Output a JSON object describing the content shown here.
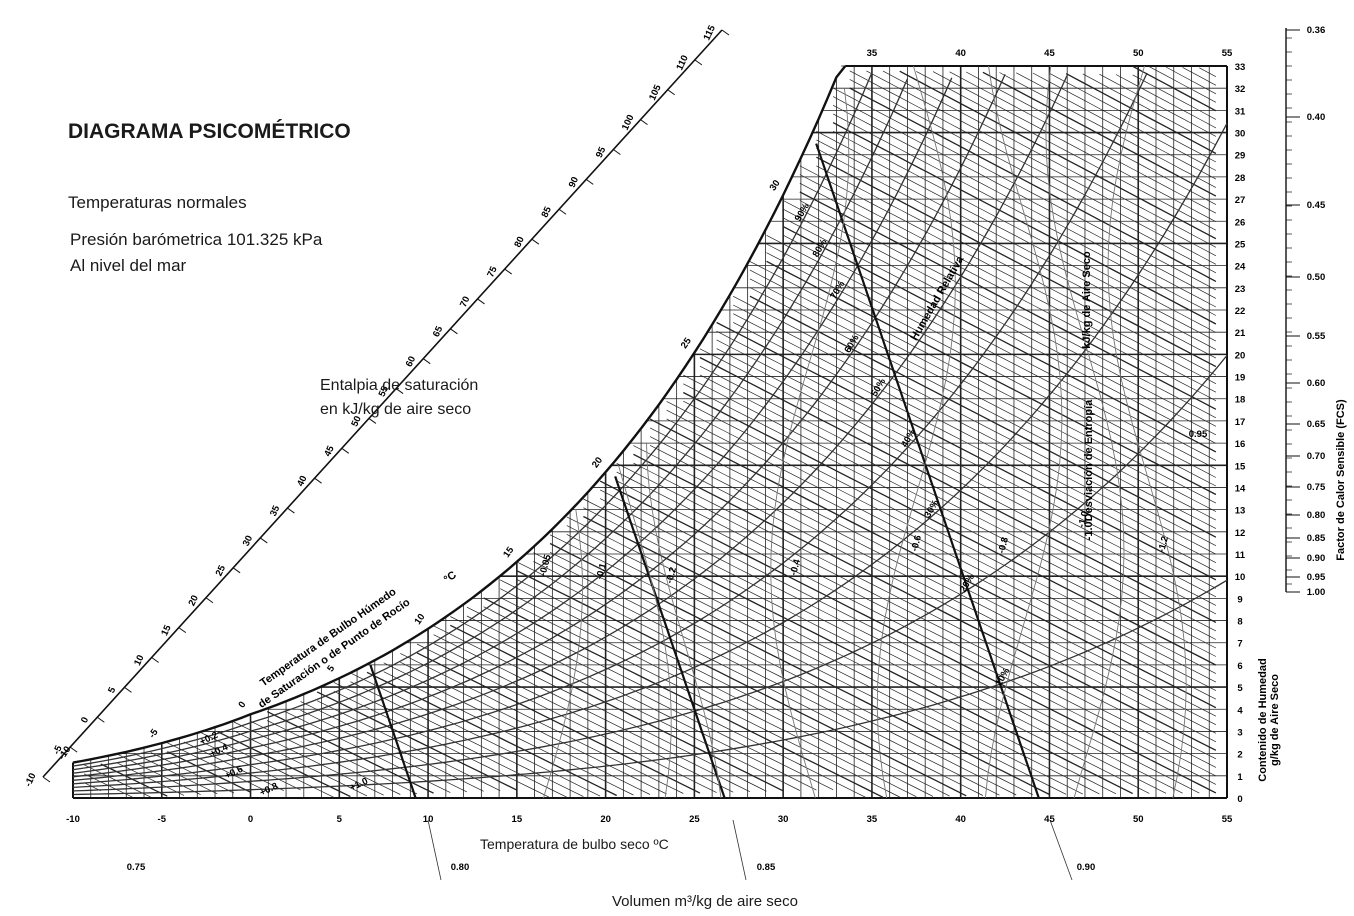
{
  "title": "DIAGRAMA PSICOMÉTRICO",
  "subtitle_1": "Temperaturas normales",
  "subtitle_2": "Presión barómetrica 101.325 kPa",
  "subtitle_3": "Al nivel del mar",
  "enthalpy_label_1": "Entalpia de saturación",
  "enthalpy_label_2": "en kJ/kg de aire seco",
  "wetbulb_label_1": "Temperatura de Bulbo Húmedo",
  "wetbulb_label_2": "de Saturación o de Punto de Rocío",
  "wetbulb_unit": "°C",
  "relative_humidity_label": "Humedad Relativa",
  "entropy_label": "kJ/kg de Aire Seco",
  "entropy_deviation_label": "-1.0Desviación de Entropía",
  "moisture_axis_label_1": "Contenido de Humedad",
  "moisture_axis_label_2": "g/kg de Aire Seco",
  "shr_axis_label": "Factor de Calor Sensible  (FCS)",
  "chart_data": {
    "type": "psychrometric",
    "xlabel": "Temperatura de bulbo seco  ºC",
    "ylabel": "Contenido de Humedad g/kg de Aire Seco",
    "volume_label": "Volumen m³/kg de aire seco",
    "dry_bulb_ticks": [
      "-10",
      "-5",
      "0",
      "5",
      "10",
      "15",
      "20",
      "25",
      "30",
      "35",
      "40",
      "45",
      "50",
      "55"
    ],
    "top_dry_bulb_ticks": [
      "35",
      "40",
      "45",
      "50",
      "55"
    ],
    "xlim": [
      -10,
      55
    ],
    "moisture_ticks": [
      "0",
      "1",
      "2",
      "3",
      "4",
      "5",
      "6",
      "7",
      "8",
      "9",
      "10",
      "11",
      "12",
      "13",
      "14",
      "15",
      "16",
      "17",
      "18",
      "19",
      "20",
      "21",
      "22",
      "23",
      "24",
      "25",
      "26",
      "27",
      "28",
      "29",
      "30",
      "31",
      "32",
      "33"
    ],
    "ylim": [
      0,
      33
    ],
    "enthalpy_ticks": [
      "-10",
      "-5",
      "0",
      "5",
      "10",
      "15",
      "20",
      "25",
      "30",
      "35",
      "40",
      "45",
      "50",
      "55",
      "60",
      "65",
      "70",
      "75",
      "80",
      "85",
      "90",
      "95",
      "100",
      "105",
      "110",
      "115"
    ],
    "wet_bulb_ticks": [
      "-10",
      "-5",
      "0",
      "5",
      "10",
      "15",
      "20",
      "25",
      "30"
    ],
    "relative_humidity": [
      "10%",
      "20%",
      "30%",
      "40%",
      "50%",
      "60%",
      "70%",
      "80%",
      "90%"
    ],
    "volume_values": [
      "0.75",
      "0.80",
      "0.85",
      "0.90"
    ],
    "volume_lines": [
      {
        "label": "0.80",
        "t_bottom": 9.3
      },
      {
        "label": "0.85",
        "t_bottom": 26.7
      },
      {
        "label": "0.90",
        "t_bottom": 44.4
      }
    ],
    "entropy_deviation": [
      "-0.05",
      "-0.1",
      "-0.2",
      "-0.4",
      "-0.6",
      "-0.8",
      "-1.0",
      "-1.2"
    ],
    "shr_ticks": [
      "0.36",
      "0.40",
      "0.45",
      "0.50",
      "0.55",
      "0.60",
      "0.65",
      "0.70",
      "0.75",
      "0.80",
      "0.85",
      "0.90",
      "0.95",
      "1.00"
    ],
    "shr_marker": "0.95",
    "small_corrections": [
      "+0.2",
      "+0.4",
      "+0.6",
      "+0.8",
      "+1.0"
    ]
  }
}
